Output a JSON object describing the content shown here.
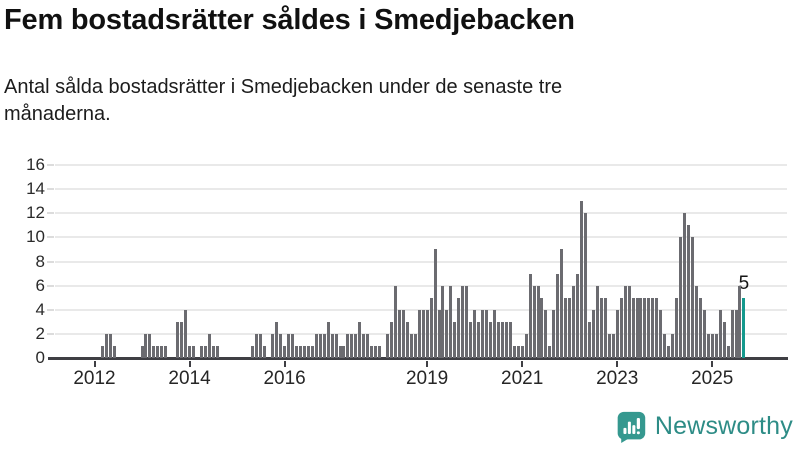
{
  "header": {
    "title": "Fem bostadsrätter såldes i Smedjebacken",
    "subtitle": "Antal sålda bostadsrätter i Smedjebacken under de senaste tre månaderna."
  },
  "chart_data": {
    "type": "bar",
    "title": "Fem bostadsrätter såldes i Smedjebacken",
    "subtitle": "Antal sålda bostadsrätter i Smedjebacken under de senaste tre månaderna.",
    "x_start_month": "2012-01",
    "x_unit": "month",
    "series": [
      {
        "name": "Antal sålda bostadsrätter, rullande tre månader",
        "values": [
          0,
          0,
          1,
          2,
          2,
          1,
          0,
          0,
          0,
          0,
          0,
          0,
          1,
          2,
          2,
          1,
          1,
          1,
          1,
          0,
          0,
          3,
          3,
          4,
          1,
          1,
          0,
          1,
          1,
          2,
          1,
          1,
          0,
          0,
          0,
          0,
          0,
          0,
          0,
          0,
          1,
          2,
          2,
          1,
          0,
          2,
          3,
          2,
          1,
          2,
          2,
          1,
          1,
          1,
          1,
          1,
          2,
          2,
          2,
          3,
          2,
          2,
          1,
          1,
          2,
          2,
          2,
          3,
          2,
          2,
          1,
          1,
          1,
          0,
          2,
          3,
          6,
          4,
          4,
          3,
          2,
          2,
          4,
          4,
          4,
          5,
          9,
          4,
          6,
          4,
          6,
          3,
          5,
          6,
          6,
          3,
          4,
          3,
          4,
          4,
          3,
          4,
          3,
          3,
          3,
          3,
          1,
          1,
          1,
          2,
          7,
          6,
          6,
          5,
          4,
          1,
          4,
          7,
          9,
          5,
          5,
          6,
          7,
          13,
          12,
          3,
          4,
          6,
          5,
          5,
          2,
          2,
          4,
          5,
          6,
          6,
          5,
          5,
          5,
          5,
          5,
          5,
          5,
          4,
          2,
          1,
          2,
          5,
          10,
          12,
          11,
          10,
          6,
          5,
          4,
          2,
          2,
          2,
          4,
          3,
          1,
          4,
          4,
          6,
          5
        ]
      }
    ],
    "highlight": {
      "index": 164,
      "label": "5",
      "color": "#14998d"
    },
    "bar_color": "#6b6b70",
    "grid": "horizontal",
    "gridline_color": "#e9e9e9",
    "ylim": [
      0,
      16
    ],
    "yticks": [
      0,
      2,
      4,
      6,
      8,
      10,
      12,
      14,
      16
    ],
    "xticks": [
      {
        "label": "2012",
        "month_index": 0
      },
      {
        "label": "2014",
        "month_index": 24
      },
      {
        "label": "2016",
        "month_index": 48
      },
      {
        "label": "2019",
        "month_index": 84
      },
      {
        "label": "2021",
        "month_index": 108
      },
      {
        "label": "2023",
        "month_index": 132
      },
      {
        "label": "2025",
        "month_index": 156
      }
    ],
    "legend": "none"
  },
  "footer": {
    "brand": "Newsworthy",
    "brand_color": "#2d8c86",
    "icon": "newsworthy-chart-bubble-icon",
    "icon_color": "#35988f"
  }
}
